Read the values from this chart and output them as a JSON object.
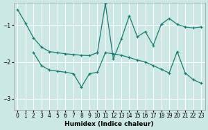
{
  "xlabel": "Humidex (Indice chaleur)",
  "background_color": "#cce8e4",
  "grid_color": "#ffffff",
  "line_color": "#1a7a6e",
  "xlim": [
    -0.5,
    23.5
  ],
  "ylim": [
    -3.3,
    -0.4
  ],
  "yticks": [
    -3,
    -2,
    -1
  ],
  "xticks": [
    0,
    1,
    2,
    3,
    4,
    5,
    6,
    7,
    8,
    9,
    10,
    11,
    12,
    13,
    14,
    15,
    16,
    17,
    18,
    19,
    20,
    21,
    22,
    23
  ],
  "lineA_x": [
    0,
    1,
    2,
    3,
    4,
    5,
    6,
    7,
    8,
    9,
    10
  ],
  "lineA_y": [
    -0.58,
    -0.95,
    -1.35,
    -1.6,
    -1.72,
    -1.75,
    -1.78,
    -1.8,
    -1.82,
    -1.83,
    -1.75
  ],
  "lineB_x": [
    2,
    3,
    4,
    5,
    6,
    7,
    8,
    9,
    10,
    11,
    12,
    13,
    14,
    15,
    16,
    17,
    18,
    19,
    20,
    21,
    22,
    23
  ],
  "lineB_y": [
    -1.75,
    -2.1,
    -2.22,
    -2.25,
    -2.28,
    -2.32,
    -2.68,
    -2.32,
    -2.28,
    -1.75,
    -1.78,
    -1.82,
    -1.88,
    -1.95,
    -2.0,
    -2.1,
    -2.2,
    -2.3,
    -1.72,
    -2.3,
    -2.48,
    -2.58
  ],
  "lineC_x": [
    10,
    11,
    12,
    13,
    14,
    15,
    16,
    17,
    18,
    19,
    20,
    21,
    22,
    23
  ],
  "lineC_y": [
    -1.75,
    -0.42,
    -1.92,
    -1.38,
    -0.75,
    -1.32,
    -1.18,
    -1.55,
    -0.98,
    -0.82,
    -0.98,
    -1.05,
    -1.08,
    -1.05
  ]
}
